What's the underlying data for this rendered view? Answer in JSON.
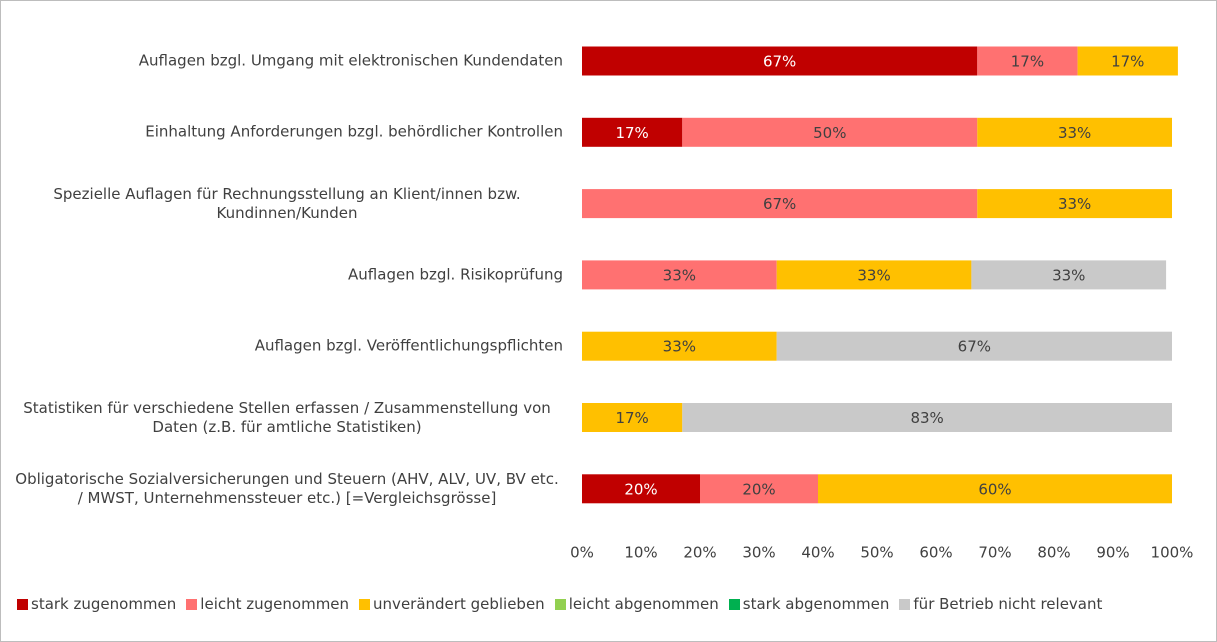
{
  "chart_data": {
    "type": "bar",
    "orientation": "horizontal",
    "stacked": true,
    "categories": [
      "Auflagen bzgl. Umgang mit elektronischen Kundendaten",
      "Einhaltung Anforderungen bzgl. behördlicher Kontrollen",
      "Spezielle Auflagen für Rechnungsstellung an Klient/innen bzw. Kundinnen/Kunden",
      "Auflagen bzgl. Risikoprüfung",
      "Auflagen bzgl. Veröffentlichungspflichten",
      "Statistiken für verschiedene Stellen erfassen / Zusammenstellung von Daten (z.B. für amtliche Statistiken)",
      "Obligatorische Sozialversicherungen und Steuern (AHV, ALV, UV, BV etc. / MWST, Unternehmenssteuer etc.) [=Vergleichsgrösse]"
    ],
    "series": [
      {
        "name": "stark zugenommen",
        "color": "#c00000",
        "values": [
          67,
          17,
          null,
          null,
          null,
          null,
          20
        ],
        "value_labels": [
          "67%",
          "17%",
          null,
          null,
          null,
          null,
          "20%"
        ]
      },
      {
        "name": "leicht zugenommen",
        "color": "#ff7171",
        "values": [
          17,
          50,
          67,
          33,
          null,
          null,
          20
        ],
        "value_labels": [
          "17%",
          "50%",
          "67%",
          "33%",
          null,
          null,
          "20%"
        ]
      },
      {
        "name": "unverändert geblieben",
        "color": "#ffc000",
        "values": [
          17,
          33,
          33,
          33,
          33,
          17,
          60
        ],
        "value_labels": [
          "17%",
          "33%",
          "33%",
          "33%",
          "33%",
          "17%",
          "60%"
        ]
      },
      {
        "name": "leicht abgenommen",
        "color": "#92d050",
        "values": [
          null,
          null,
          null,
          null,
          null,
          null,
          null
        ],
        "value_labels": [
          null,
          null,
          null,
          null,
          null,
          null,
          null
        ]
      },
      {
        "name": "stark abgenommen",
        "color": "#00b050",
        "values": [
          null,
          null,
          null,
          null,
          null,
          null,
          null
        ],
        "value_labels": [
          null,
          null,
          null,
          null,
          null,
          null,
          null
        ]
      },
      {
        "name": "für Betrieb nicht relevant",
        "color": "#c9c9c9",
        "values": [
          null,
          null,
          null,
          33,
          67,
          83,
          null
        ],
        "value_labels": [
          null,
          null,
          null,
          "33%",
          "67%",
          "83%",
          null
        ]
      }
    ],
    "xlim": [
      0,
      100
    ],
    "xticks": [
      {
        "value": 0,
        "label": "0%"
      },
      {
        "value": 10,
        "label": "10%"
      },
      {
        "value": 20,
        "label": "20%"
      },
      {
        "value": 30,
        "label": "30%"
      },
      {
        "value": 40,
        "label": "40%"
      },
      {
        "value": 50,
        "label": "50%"
      },
      {
        "value": 60,
        "label": "60%"
      },
      {
        "value": 70,
        "label": "70%"
      },
      {
        "value": 80,
        "label": "80%"
      },
      {
        "value": 90,
        "label": "90%"
      },
      {
        "value": 100,
        "label": "100%"
      }
    ],
    "legend": "bottom"
  }
}
